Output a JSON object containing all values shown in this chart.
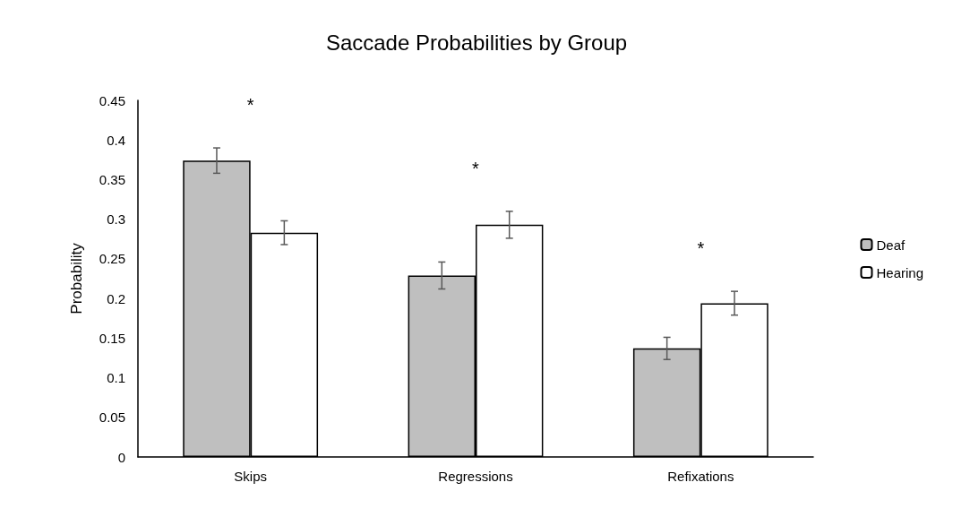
{
  "chart_data": {
    "type": "bar",
    "title": "Saccade Probabilities by Group",
    "ylabel": "Probability",
    "categories": [
      "Skips",
      "Regressions",
      "Refixations"
    ],
    "series": [
      {
        "name": "Deaf",
        "color": "#bfbfbf",
        "values": [
          0.374,
          0.229,
          0.137
        ],
        "errors": [
          0.016,
          0.017,
          0.014
        ]
      },
      {
        "name": "Hearing",
        "color": "#ffffff",
        "values": [
          0.283,
          0.293,
          0.194
        ],
        "errors": [
          0.015,
          0.017,
          0.015
        ]
      }
    ],
    "ylim": [
      0,
      0.45
    ],
    "yticks": [
      0,
      0.05,
      0.1,
      0.15,
      0.2,
      0.25,
      0.3,
      0.35,
      0.4,
      0.45
    ],
    "annotations": [
      "*",
      "*",
      "*"
    ],
    "grid": false,
    "legend": "right"
  }
}
